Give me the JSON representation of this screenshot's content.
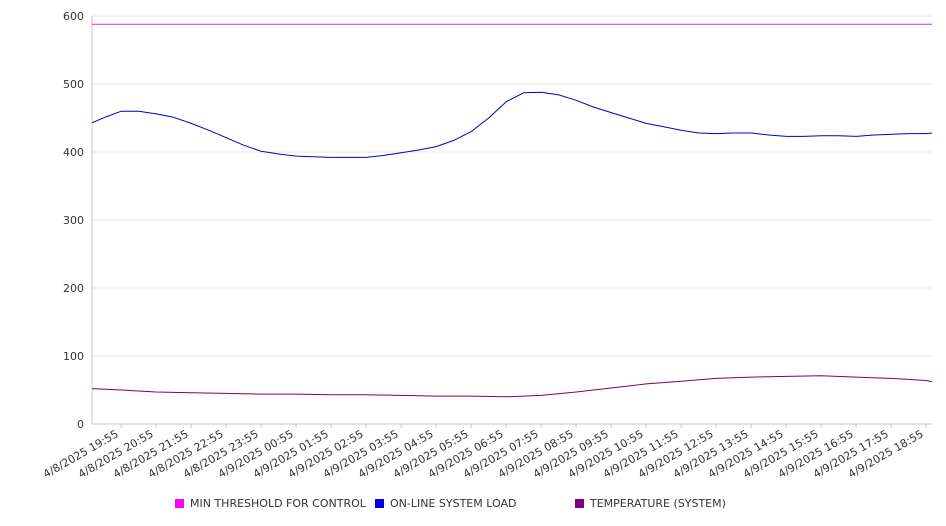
{
  "chart_data": {
    "type": "line",
    "title": "",
    "xlabel": "",
    "ylabel": "",
    "ylim": [
      0,
      600
    ],
    "y_ticks": [
      "0",
      "100",
      "200",
      "300",
      "400",
      "500",
      "600"
    ],
    "x_ticks": [
      "4/8/2025 19:55",
      "4/8/2025 20:55",
      "4/8/2025 21:55",
      "4/8/2025 22:55",
      "4/8/2025 23:55",
      "4/9/2025 00:55",
      "4/9/2025 01:55",
      "4/9/2025 02:55",
      "4/9/2025 03:55",
      "4/9/2025 04:55",
      "4/9/2025 05:55",
      "4/9/2025 06:55",
      "4/9/2025 07:55",
      "4/9/2025 08:55",
      "4/9/2025 09:55",
      "4/9/2025 10:55",
      "4/9/2025 11:55",
      "4/9/2025 12:55",
      "4/9/2025 13:55",
      "4/9/2025 14:55",
      "4/9/2025 15:55",
      "4/9/2025 16:55",
      "4/9/2025 17:55",
      "4/9/2025 18:55"
    ],
    "x_range": [
      "4/8/2025 19:05",
      "4/9/2025 19:05"
    ],
    "grid": "horizontal",
    "legend_position": "bottom",
    "series": [
      {
        "name": "MIN THRESHOLD FOR CONTROL",
        "color": "#ff00ff",
        "line_color": "#cc33cc",
        "points": [
          [
            "4/8/2025 19:05",
            588
          ],
          [
            "4/9/2025 19:05",
            588
          ]
        ]
      },
      {
        "name": "ON-LINE SYSTEM LOAD",
        "color": "#0000ee",
        "line_color": "#0000cc",
        "points": [
          [
            "4/8/2025 19:05",
            443
          ],
          [
            "4/8/2025 19:30",
            452
          ],
          [
            "4/8/2025 19:55",
            460
          ],
          [
            "4/8/2025 20:25",
            460
          ],
          [
            "4/8/2025 20:55",
            456
          ],
          [
            "4/8/2025 21:25",
            451
          ],
          [
            "4/8/2025 21:55",
            442
          ],
          [
            "4/8/2025 22:25",
            432
          ],
          [
            "4/8/2025 22:55",
            421
          ],
          [
            "4/8/2025 23:25",
            410
          ],
          [
            "4/8/2025 23:55",
            401
          ],
          [
            "4/9/2025 00:25",
            397
          ],
          [
            "4/9/2025 00:55",
            394
          ],
          [
            "4/9/2025 01:25",
            393
          ],
          [
            "4/9/2025 01:55",
            392
          ],
          [
            "4/9/2025 02:25",
            392
          ],
          [
            "4/9/2025 02:55",
            392
          ],
          [
            "4/9/2025 03:25",
            395
          ],
          [
            "4/9/2025 03:55",
            399
          ],
          [
            "4/9/2025 04:25",
            403
          ],
          [
            "4/9/2025 04:55",
            408
          ],
          [
            "4/9/2025 05:25",
            417
          ],
          [
            "4/9/2025 05:55",
            430
          ],
          [
            "4/9/2025 06:25",
            450
          ],
          [
            "4/9/2025 06:55",
            474
          ],
          [
            "4/9/2025 07:25",
            487
          ],
          [
            "4/9/2025 07:55",
            488
          ],
          [
            "4/9/2025 08:25",
            484
          ],
          [
            "4/9/2025 08:55",
            476
          ],
          [
            "4/9/2025 09:25",
            466
          ],
          [
            "4/9/2025 09:55",
            458
          ],
          [
            "4/9/2025 10:25",
            450
          ],
          [
            "4/9/2025 10:55",
            442
          ],
          [
            "4/9/2025 11:25",
            437
          ],
          [
            "4/9/2025 11:55",
            432
          ],
          [
            "4/9/2025 12:25",
            428
          ],
          [
            "4/9/2025 12:55",
            427
          ],
          [
            "4/9/2025 13:25",
            428
          ],
          [
            "4/9/2025 13:55",
            428
          ],
          [
            "4/9/2025 14:25",
            425
          ],
          [
            "4/9/2025 14:55",
            423
          ],
          [
            "4/9/2025 15:25",
            423
          ],
          [
            "4/9/2025 15:55",
            424
          ],
          [
            "4/9/2025 16:25",
            424
          ],
          [
            "4/9/2025 16:55",
            423
          ],
          [
            "4/9/2025 17:25",
            425
          ],
          [
            "4/9/2025 17:55",
            426
          ],
          [
            "4/9/2025 18:25",
            427
          ],
          [
            "4/9/2025 18:55",
            427
          ],
          [
            "4/9/2025 19:05",
            428
          ]
        ]
      },
      {
        "name": "TEMPERATURE (SYSTEM)",
        "color": "#800080",
        "line_color": "#800060",
        "points": [
          [
            "4/8/2025 19:05",
            52
          ],
          [
            "4/8/2025 19:55",
            50
          ],
          [
            "4/8/2025 20:55",
            47
          ],
          [
            "4/8/2025 21:55",
            46
          ],
          [
            "4/8/2025 22:55",
            45
          ],
          [
            "4/8/2025 23:55",
            44
          ],
          [
            "4/9/2025 00:55",
            44
          ],
          [
            "4/9/2025 01:55",
            43
          ],
          [
            "4/9/2025 02:55",
            43
          ],
          [
            "4/9/2025 03:55",
            42
          ],
          [
            "4/9/2025 04:55",
            41
          ],
          [
            "4/9/2025 05:55",
            41
          ],
          [
            "4/9/2025 06:55",
            40
          ],
          [
            "4/9/2025 07:55",
            42
          ],
          [
            "4/9/2025 08:55",
            47
          ],
          [
            "4/9/2025 09:55",
            53
          ],
          [
            "4/9/2025 10:55",
            59
          ],
          [
            "4/9/2025 11:55",
            63
          ],
          [
            "4/9/2025 12:55",
            67
          ],
          [
            "4/9/2025 13:55",
            69
          ],
          [
            "4/9/2025 14:55",
            70
          ],
          [
            "4/9/2025 15:55",
            71
          ],
          [
            "4/9/2025 16:55",
            69
          ],
          [
            "4/9/2025 17:55",
            67
          ],
          [
            "4/9/2025 18:55",
            64
          ],
          [
            "4/9/2025 19:05",
            62
          ]
        ]
      }
    ]
  }
}
